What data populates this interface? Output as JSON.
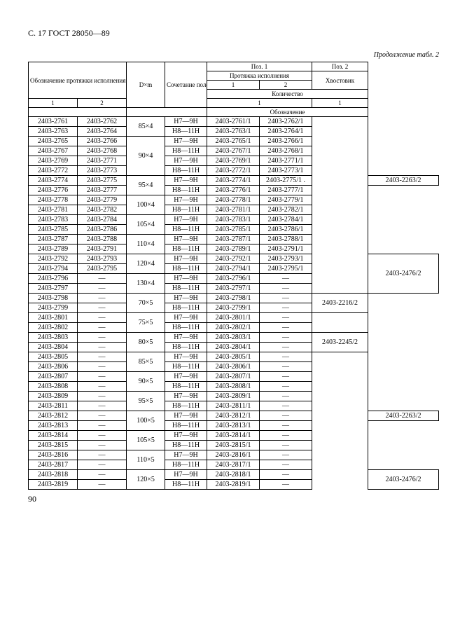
{
  "header": "С. 17 ГОСТ 28050—89",
  "caption": "Продолжение табл. 2",
  "colHeads": {
    "desig": "Обозначение протяжки исполнения",
    "dm": "D×m",
    "tol": "Сочетание полей допусков D и e",
    "pos1": "Поз. 1",
    "pos2": "Поз. 2",
    "proto": "Протяжка исполнения",
    "shank": "Хвостовик",
    "c1": "1",
    "c2": "2",
    "qty": "Количество",
    "q1": "1",
    "q1b": "1",
    "desigSub": "Обозначение"
  },
  "rows": [
    {
      "a": "2403-2761",
      "b": "2403-2762",
      "dm": "85×4",
      "dmspan": 2,
      "tol": "H7—9H",
      "p": "2403-2761/1",
      "q": "2403-2762/1",
      "sh": "",
      "shspan": 16,
      "shclass": "nb"
    },
    {
      "a": "2403-2763",
      "b": "2403-2764",
      "tol": "H8—11H",
      "p": "2403-2763/1",
      "q": "2403-2764/1"
    },
    {
      "a": "2403-2765",
      "b": "2403-2766",
      "dm": "90×4",
      "dmspan": 4,
      "tol": "H7—9H",
      "p": "2403-2765/1",
      "q": "2403-2766/1"
    },
    {
      "a": "2403-2767",
      "b": "2403-2768",
      "tol": "H8—11H",
      "p": "2403-2767/1",
      "q": "2403-2768/1"
    },
    {
      "a": "2403-2769",
      "b": "2403-2771",
      "tol": "H7—9H",
      "p": "2403-2769/1",
      "q": "2403-2771/1"
    },
    {
      "a": "2403-2772",
      "b": "2403-2773",
      "tol": "H8—11H",
      "p": "2403-2772/1",
      "q": "2403-2773/1"
    },
    {
      "a": "2403-2774",
      "b": "2403-2775",
      "dm": "95×4",
      "dmspan": 2,
      "tol": "H7—9H",
      "p": "2403-2774/1",
      "q": "2403-2775/1 .",
      "sh": "2403-2263/2"
    },
    {
      "a": "2403-2776",
      "b": "2403-2777",
      "tol": "H8—11H",
      "p": "2403-2776/1",
      "q": "2403-2777/1"
    },
    {
      "a": "2403-2778",
      "b": "2403-2779",
      "dm": "100×4",
      "dmspan": 2,
      "tol": "H7—9H",
      "p": "2403-2778/1",
      "q": "2403-2779/1"
    },
    {
      "a": "2403-2781",
      "b": "2403-2782",
      "tol": "H8—11H",
      "p": "2403-2781/1",
      "q": "2403-2782/1"
    },
    {
      "a": "2403-2783",
      "b": "2403-2784",
      "dm": "105×4",
      "dmspan": 2,
      "tol": "H7—9H",
      "p": "2403-2783/1",
      "q": "2403-2784/1"
    },
    {
      "a": "2403-2785",
      "b": "2403-2786",
      "tol": "H8—11H",
      "p": "2403-2785/1",
      "q": "2403-2786/1"
    },
    {
      "a": "2403-2787",
      "b": "2403-2788",
      "dm": "110×4",
      "dmspan": 2,
      "tol": "H7—9H",
      "p": "2403-2787/1",
      "q": "2403-2788/1"
    },
    {
      "a": "2403-2789",
      "b": "2403-2791",
      "tol": "H8—11H",
      "p": "2403-2789/1",
      "q": "2403-2791/1"
    },
    {
      "a": "2403-2792",
      "b": "2403-2793",
      "dm": "120×4",
      "dmspan": 2,
      "tol": "H7—9H",
      "p": "2403-2792/1",
      "q": "2403-2793/1",
      "sh": "2403-2476/2",
      "shspan": 4
    },
    {
      "a": "2403-2794",
      "b": "2403-2795",
      "tol": "H8—11H",
      "p": "2403-2794/1",
      "q": "2403-2795/1"
    },
    {
      "a": "2403-2796",
      "b": "—",
      "dm": "130×4",
      "dmspan": 2,
      "tol": "H7—9H",
      "p": "2403-2796/1",
      "q": "—"
    },
    {
      "a": "2403-2797",
      "b": "—",
      "tol": "H8—11H",
      "p": "2403-2797/1",
      "q": "—"
    },
    {
      "a": "2403-2798",
      "b": "—",
      "dm": "70×5",
      "dmspan": 2,
      "tol": "H7—9H",
      "p": "2403-2798/1",
      "q": "—",
      "sh": "2403-2216/2",
      "shspan": 2
    },
    {
      "a": "2403-2799",
      "b": "—",
      "tol": "H8—11H",
      "p": "2403-2799/1",
      "q": "—"
    },
    {
      "a": "2403-2801",
      "b": "—",
      "dm": "75×5",
      "dmspan": 2,
      "tol": "H7—9H",
      "p": "2403-2801/1",
      "q": "—",
      "sh": "",
      "shspan": 2,
      "shclass": "nb"
    },
    {
      "a": "2403-2802",
      "b": "—",
      "tol": "H8—11H",
      "p": "2403-2802/1",
      "q": "—"
    },
    {
      "a": "2403-2803",
      "b": "—",
      "dm": "80×5",
      "dmspan": 2,
      "tol": "H7—9H",
      "p": "2403-2803/1",
      "q": "—",
      "sh": "2403-2245/2",
      "shspan": 2
    },
    {
      "a": "2403-2804",
      "b": "—",
      "tol": "H8—11H",
      "p": "2403-2804/1",
      "q": "—"
    },
    {
      "a": "2403-2805",
      "b": "—",
      "dm": "85×5",
      "dmspan": 2,
      "tol": "H7—9H",
      "p": "2403-2805/1",
      "q": "—",
      "sh": "",
      "shspan": 2,
      "shclass": "nb"
    },
    {
      "a": "2403-2806",
      "b": "—",
      "tol": "H8—11H",
      "p": "2403-2806/1",
      "q": "—"
    },
    {
      "a": "2403-2807",
      "b": "—",
      "dm": "90×5",
      "dmspan": 2,
      "tol": "H7—9H",
      "p": "2403-2807/1",
      "q": "—",
      "sh": "",
      "shspan": 12,
      "shclass": "nb"
    },
    {
      "a": "2403-2808",
      "b": "—",
      "tol": "H8—11H",
      "p": "2403-2808/1",
      "q": "—"
    },
    {
      "a": "2403-2809",
      "b": "—",
      "dm": "95×5",
      "dmspan": 2,
      "tol": "H7—9H",
      "p": "2403-2809/1",
      "q": "—"
    },
    {
      "a": "2403-2811",
      "b": "—",
      "tol": "H8—11H",
      "p": "2403-2811/1",
      "q": "—"
    },
    {
      "a": "2403-2812",
      "b": "—",
      "dm": "100×5",
      "dmspan": 2,
      "tol": "H7—9H",
      "p": "2403-2812/1",
      "q": "—",
      "sh": "2403-2263/2"
    },
    {
      "a": "2403-2813",
      "b": "—",
      "tol": "H8—11H",
      "p": "2403-2813/1",
      "q": "—"
    },
    {
      "a": "2403-2814",
      "b": "—",
      "dm": "105×5",
      "dmspan": 2,
      "tol": "H7—9H",
      "p": "2403-2814/1",
      "q": "—"
    },
    {
      "a": "2403-2815",
      "b": "—",
      "tol": "H8—11H",
      "p": "2403-2815/1",
      "q": "—"
    },
    {
      "a": "2403-2816",
      "b": "—",
      "dm": "110×5",
      "dmspan": 2,
      "tol": "H7—9H",
      "p": "2403-2816/1",
      "q": "—"
    },
    {
      "a": "2403-2817",
      "b": "—",
      "tol": "H8—11H",
      "p": "2403-2817/1",
      "q": "—"
    },
    {
      "a": "2403-2818",
      "b": "—",
      "dm": "120×5",
      "dmspan": 2,
      "tol": "H7—9H",
      "p": "2403-2818/1",
      "q": "—",
      "sh": "2403-2476/2",
      "shspan": 2
    },
    {
      "a": "2403-2819",
      "b": "—",
      "tol": "H8—11H",
      "p": "2403-2819/1",
      "q": "—"
    }
  ],
  "pageNum": "90"
}
